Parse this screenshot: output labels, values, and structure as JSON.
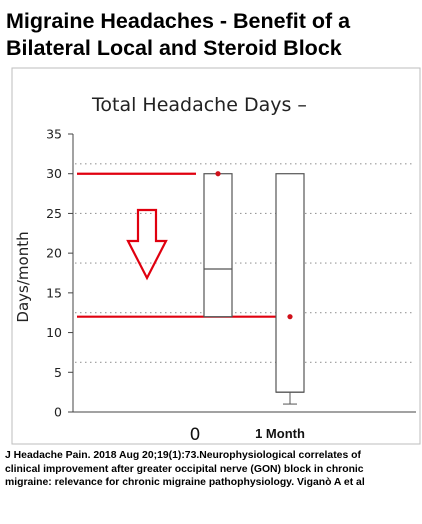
{
  "slide": {
    "title_line1": "Migraine Headaches - Benefit of a",
    "title_line2": "Bilateral Local and Steroid Block",
    "citation_line1": "J Headache Pain. 2018 Aug 20;19(1):73.Neurophysiological correlates of",
    "citation_line2": "clinical improvement after greater occipital nerve (GON) block in chronic",
    "citation_line3": "migraine: relevance for chronic migraine pathophysiology. Viganò A et al"
  },
  "chart_data": {
    "type": "box",
    "title": "Total Headache Days –",
    "ylabel": "Days/month",
    "xlabel": "",
    "ylim": [
      0,
      35
    ],
    "yticks": [
      0,
      5,
      10,
      15,
      20,
      25,
      30,
      35
    ],
    "grid": {
      "horizontal_dotted_at": [
        6.25,
        12.5,
        18.75,
        25,
        31.25
      ]
    },
    "categories": [
      "0",
      "1 Month"
    ],
    "boxes": [
      {
        "category": "0",
        "min": 12,
        "q1": 12,
        "median": 18,
        "q3": 30,
        "max": 30,
        "mean": 30
      },
      {
        "category": "1 Month",
        "min": 1,
        "q1": 2.5,
        "median": 2.5,
        "q3": 30,
        "max": 30,
        "mean": 12
      }
    ],
    "reference_lines": [
      30,
      12
    ],
    "annotation": "down-arrow",
    "colors": {
      "reference_line": "#e0000f",
      "mean_marker": "#d0101a",
      "box": "#555555",
      "arrow": "#e0000f"
    }
  }
}
